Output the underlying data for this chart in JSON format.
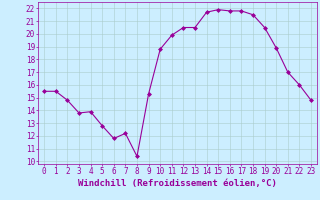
{
  "x": [
    0,
    1,
    2,
    3,
    4,
    5,
    6,
    7,
    8,
    9,
    10,
    11,
    12,
    13,
    14,
    15,
    16,
    17,
    18,
    19,
    20,
    21,
    22,
    23
  ],
  "y": [
    15.5,
    15.5,
    14.8,
    13.8,
    13.9,
    12.8,
    11.8,
    12.2,
    10.4,
    15.3,
    18.8,
    19.9,
    20.5,
    20.5,
    21.7,
    21.9,
    21.8,
    21.8,
    21.5,
    20.5,
    18.9,
    17.0,
    16.0,
    14.8
  ],
  "line_color": "#990099",
  "marker": "D",
  "marker_size": 2,
  "bg_color": "#cceeff",
  "grid_color": "#aacccc",
  "xlabel": "Windchill (Refroidissement éolien,°C)",
  "xlabel_fontsize": 6.5,
  "ytick_min": 10,
  "ytick_max": 22,
  "xtick_labels": [
    "0",
    "1",
    "2",
    "3",
    "4",
    "5",
    "6",
    "7",
    "8",
    "9",
    "10",
    "11",
    "12",
    "13",
    "14",
    "15",
    "16",
    "17",
    "18",
    "19",
    "20",
    "21",
    "22",
    "23"
  ],
  "xlim": [
    -0.5,
    23.5
  ],
  "ylim": [
    9.8,
    22.5
  ],
  "tick_fontsize": 5.5,
  "linewidth": 0.8
}
